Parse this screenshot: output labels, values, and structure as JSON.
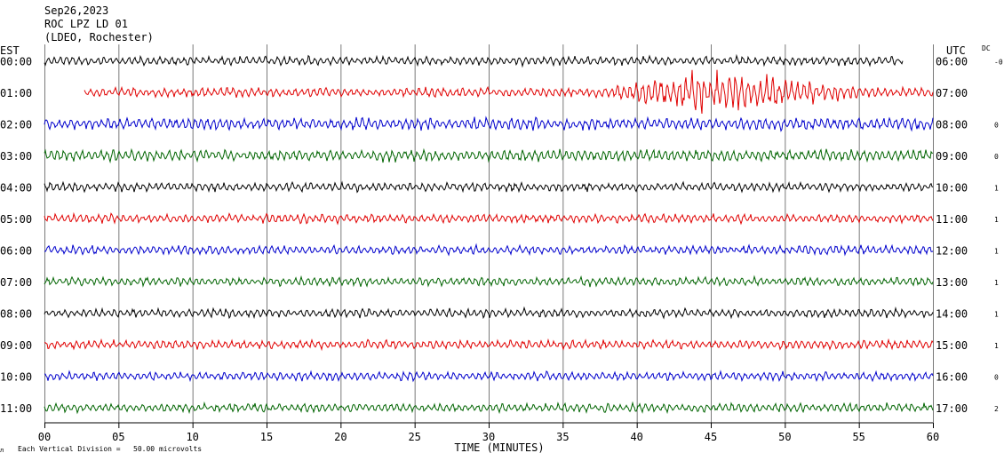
{
  "header": {
    "date": "Sep26,2023",
    "station": "ROC LPZ LD 01",
    "network": "(LDEO, Rochester)"
  },
  "left_axis_label": "EST",
  "right_axis_label": "UTC",
  "dc_label": "DC",
  "footer_note": "Each Vertical Division =   50.00 microvolts",
  "chart_data": {
    "type": "line",
    "title": "",
    "xlabel": "TIME (MINUTES)",
    "xlim": [
      0,
      60
    ],
    "xticks": [
      0,
      5,
      10,
      15,
      20,
      25,
      30,
      35,
      40,
      45,
      50,
      55,
      60
    ],
    "xtick_labels": [
      "00",
      "05",
      "10",
      "15",
      "20",
      "25",
      "30",
      "35",
      "40",
      "45",
      "50",
      "55",
      "60"
    ],
    "grid": true,
    "trace_colors": [
      "#000000",
      "#e00000",
      "#0000cc",
      "#006400"
    ],
    "rows": [
      {
        "est": "00:00",
        "utc": "06:00",
        "dc": "-0",
        "start_min": 0.0,
        "end_min": 58.0,
        "amplitude": 3.0
      },
      {
        "est": "01:00",
        "utc": "07:00",
        "dc": "",
        "start_min": 2.7,
        "end_min": 60.0,
        "amplitude": 3.0,
        "events": [
          {
            "start_min": 35.0,
            "peak_min": 45.0,
            "end_min": 55.0,
            "amplitude": 20.0
          }
        ]
      },
      {
        "est": "02:00",
        "utc": "08:00",
        "dc": "0",
        "start_min": 0.0,
        "end_min": 60.0,
        "amplitude": 4.0
      },
      {
        "est": "03:00",
        "utc": "09:00",
        "dc": "0",
        "start_min": 0.0,
        "end_min": 60.0,
        "amplitude": 4.0
      },
      {
        "est": "04:00",
        "utc": "10:00",
        "dc": "1",
        "start_min": 0.0,
        "end_min": 60.0,
        "amplitude": 3.0
      },
      {
        "est": "05:00",
        "utc": "11:00",
        "dc": "1",
        "start_min": 0.0,
        "end_min": 60.0,
        "amplitude": 3.0
      },
      {
        "est": "06:00",
        "utc": "12:00",
        "dc": "1",
        "start_min": 0.0,
        "end_min": 60.0,
        "amplitude": 3.0
      },
      {
        "est": "07:00",
        "utc": "13:00",
        "dc": "1",
        "start_min": 0.0,
        "end_min": 60.0,
        "amplitude": 3.0
      },
      {
        "est": "08:00",
        "utc": "14:00",
        "dc": "1",
        "start_min": 0.0,
        "end_min": 60.0,
        "amplitude": 3.0
      },
      {
        "est": "09:00",
        "utc": "15:00",
        "dc": "1",
        "start_min": 0.0,
        "end_min": 60.0,
        "amplitude": 3.0
      },
      {
        "est": "10:00",
        "utc": "16:00",
        "dc": "0",
        "start_min": 0.0,
        "end_min": 60.0,
        "amplitude": 3.0
      },
      {
        "est": "11:00",
        "utc": "17:00",
        "dc": "2",
        "start_min": 0.0,
        "end_min": 60.0,
        "amplitude": 3.0
      }
    ]
  }
}
